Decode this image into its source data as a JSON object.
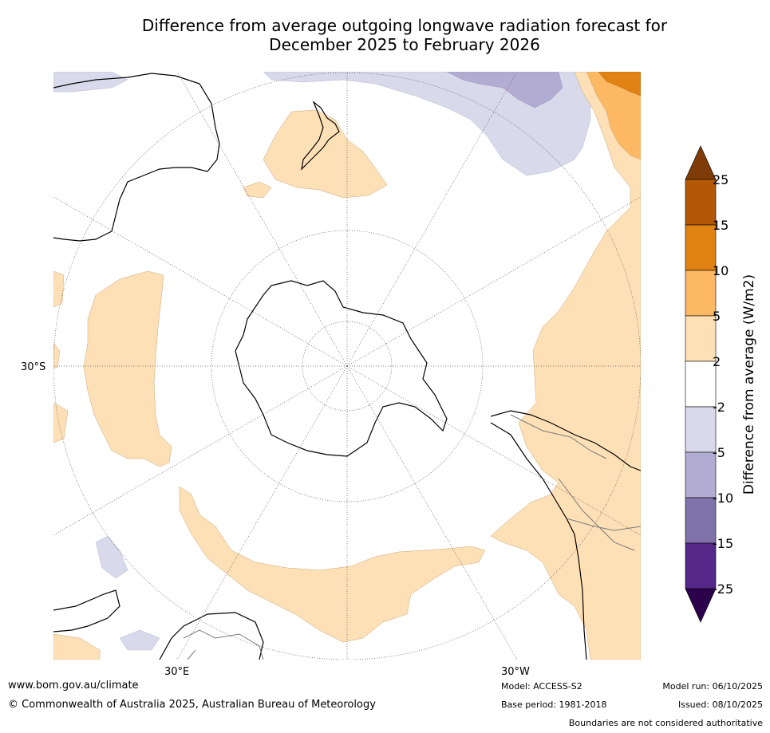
{
  "title": {
    "line1": "Difference from average outgoing longwave radiation forecast for",
    "line2": "December 2025 to February 2026"
  },
  "map": {
    "lat_label": "30°S",
    "lon_label_left": "30°E",
    "lon_label_right": "30°W"
  },
  "colorbar": {
    "label": "Difference from average (W/m2)",
    "ticks": [
      "25",
      "15",
      "10",
      "5",
      "2",
      "-2",
      "-5",
      "-10",
      "-15",
      "-25"
    ],
    "colors": {
      "extend_high": "#7f3b08",
      "c15_25": "#b35806",
      "c10_15": "#e08214",
      "c5_10": "#fdb863",
      "c2_5": "#fee0b6",
      "neutral": "#ffffff",
      "cm2_m5": "#d8daeb",
      "cm5_m10": "#b2abd2",
      "cm10_m15": "#8073ac",
      "cm15_m25": "#542788",
      "extend_low": "#2d004b"
    }
  },
  "footer": {
    "website": "www.bom.gov.au/climate",
    "copyright": "© Commonwealth of Australia 2025, Australian Bureau of Meteorology",
    "model": "Model: ACCESS-S2",
    "base_period": "Base period: 1981-2018",
    "model_run": "Model run: 06/10/2025",
    "issued": "Issued: 08/10/2025",
    "disclaimer": "Boundaries are not considered authoritative"
  }
}
